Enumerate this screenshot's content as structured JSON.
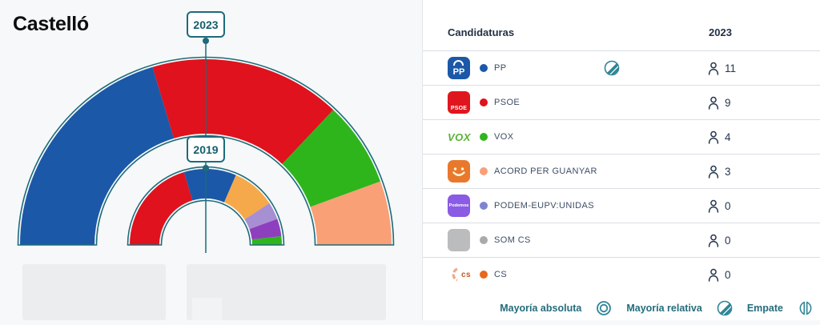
{
  "page": {
    "title": "Castelló"
  },
  "chart_data": {
    "type": "hemicycle",
    "title": "Castelló",
    "total_seats": 27,
    "legend_position": "bottom-right",
    "rings": [
      {
        "year": "2023",
        "segments": [
          {
            "party": "PP",
            "seats": 11,
            "color": "#1b58a8"
          },
          {
            "party": "PSOE",
            "seats": 9,
            "color": "#df121d"
          },
          {
            "party": "VOX",
            "seats": 4,
            "color": "#2eb51c"
          },
          {
            "party": "ACORD PER GUANYAR",
            "seats": 3,
            "color": "#f9a076"
          }
        ]
      },
      {
        "year": "2019",
        "segments": [
          {
            "seats": 11,
            "color": "#df121d"
          },
          {
            "seats": 6,
            "color": "#1b58a8"
          },
          {
            "seats": 5,
            "color": "#f6a94a"
          },
          {
            "seats": 2,
            "color": "#a78fd3"
          },
          {
            "seats": 2,
            "color": "#8e3fbe"
          },
          {
            "seats": 1,
            "color": "#2eb51c"
          }
        ]
      }
    ]
  },
  "table": {
    "header": {
      "label": "Candidaturas",
      "year": "2023"
    },
    "rows": [
      {
        "name": "PP",
        "seats": "11",
        "color": "#1b58a8",
        "logo_text": "PP",
        "logo_color": "#1b58a8",
        "winner": true
      },
      {
        "name": "PSOE",
        "seats": "9",
        "color": "#df121d",
        "logo_text": "PSOE",
        "logo_color": "#e0161f"
      },
      {
        "name": "VOX",
        "seats": "4",
        "color": "#2eb51c",
        "logo_text": "VOX",
        "logo_color": "#5cb335"
      },
      {
        "name": "ACORD PER GUANYAR",
        "seats": "3",
        "color": "#f9a076",
        "logo_color": "#e8792c"
      },
      {
        "name": "PODEM-EUPV:UNIDAS",
        "seats": "0",
        "color": "#7d85d3",
        "logo_text": "Podemos",
        "logo_color": "#8a5be4"
      },
      {
        "name": "SOM CS",
        "seats": "0",
        "color": "#a8aaac",
        "logo_color": "#bbbcbe"
      },
      {
        "name": "CS",
        "seats": "0",
        "color": "#e9661f",
        "logo_text": "cs",
        "logo_color": "#bf5a1f",
        "logo_accent": "#edaa8c"
      }
    ]
  },
  "legend": {
    "absolute": "Mayoría absoluta",
    "relative": "Mayoría relativa",
    "tie": "Empate"
  },
  "colors": {
    "accent": "#1d6b7a",
    "icon_teal": "#2e8596",
    "background_left": "#f6f8f9",
    "panel": "#ffffff",
    "divider": "#dadee3",
    "text_navy": "#233147"
  }
}
